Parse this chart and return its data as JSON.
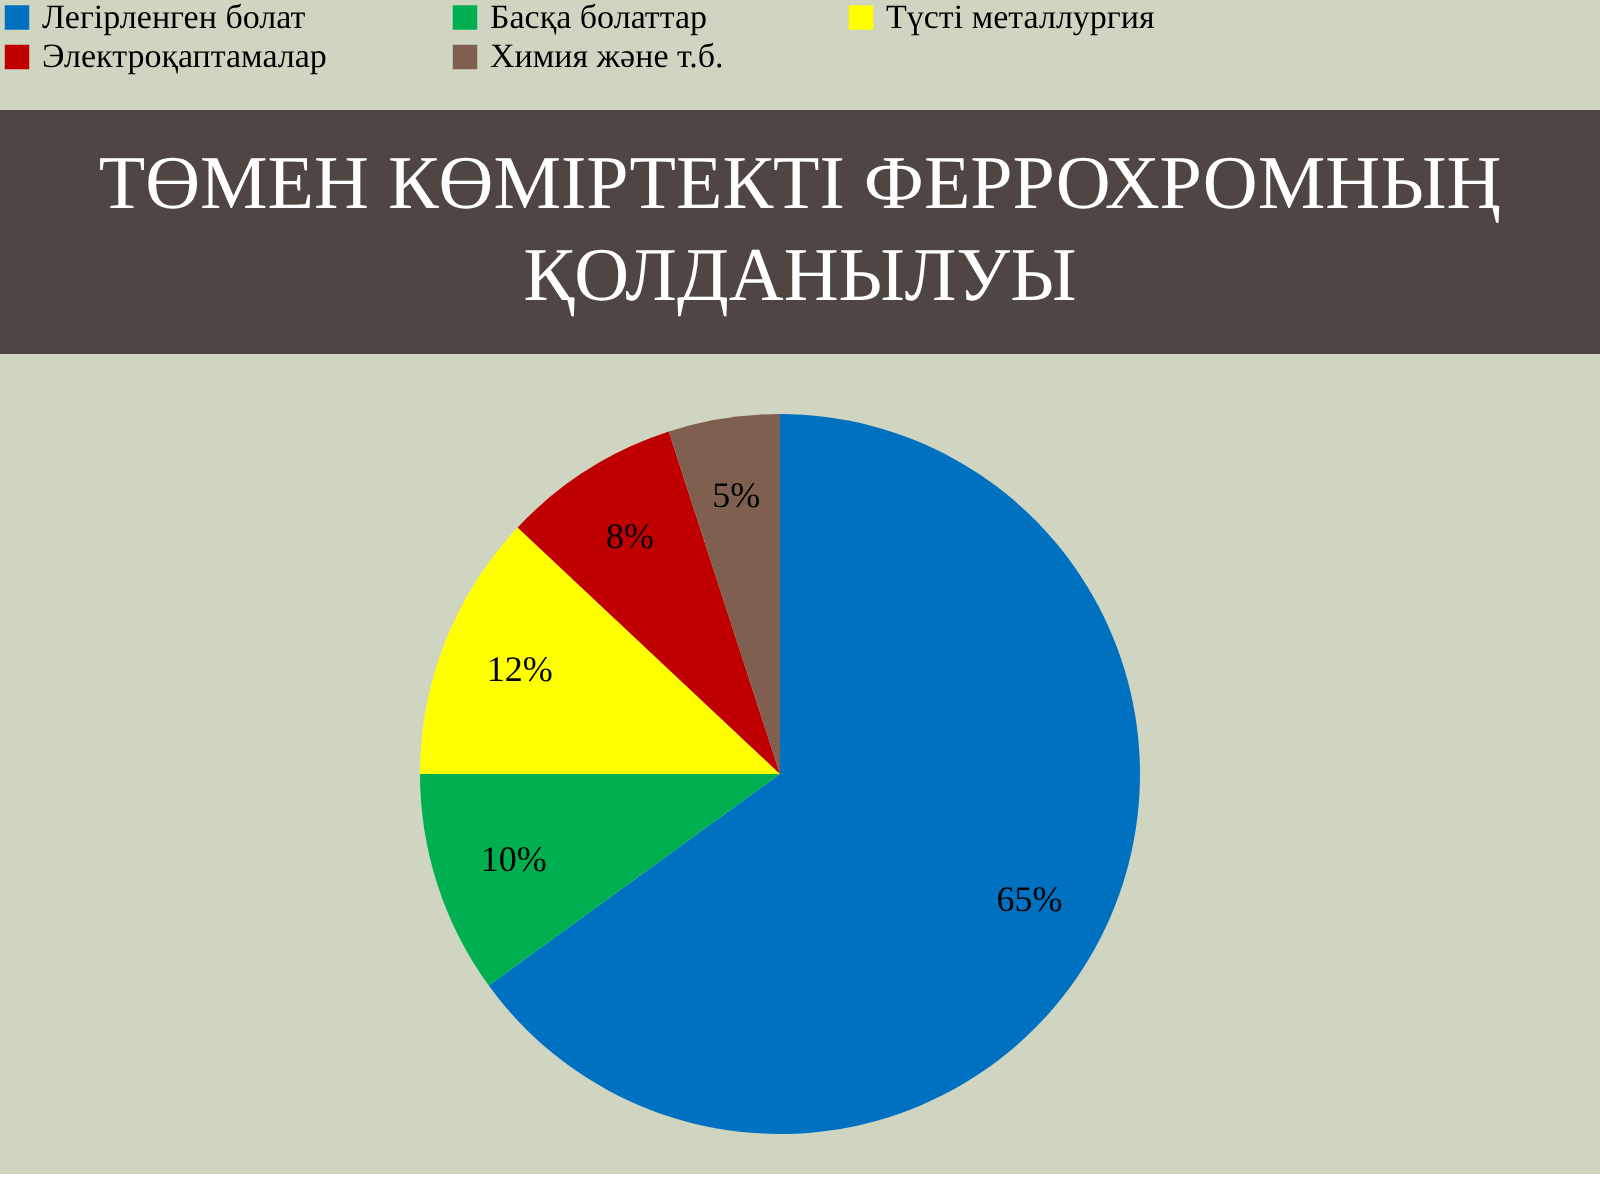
{
  "chart_data": {
    "type": "pie",
    "title": "ТӨМЕН КӨМІРТЕКТІ ФЕРРОХРОМНЫҢ\nҚОЛДАНЫЛУЫ",
    "categories": [
      "Легірленген болат",
      "Басқа болаттар",
      "Түсті металлургия",
      "Электроқаптамалар",
      "Химия және т.б."
    ],
    "values": [
      65,
      10,
      12,
      8,
      5
    ],
    "colors": [
      "#0070c0",
      "#00b050",
      "#ffff00",
      "#c00000",
      "#7f6050"
    ],
    "value_labels": [
      "65%",
      "10%",
      "12%",
      "8%",
      "5%"
    ],
    "legend": "top"
  }
}
